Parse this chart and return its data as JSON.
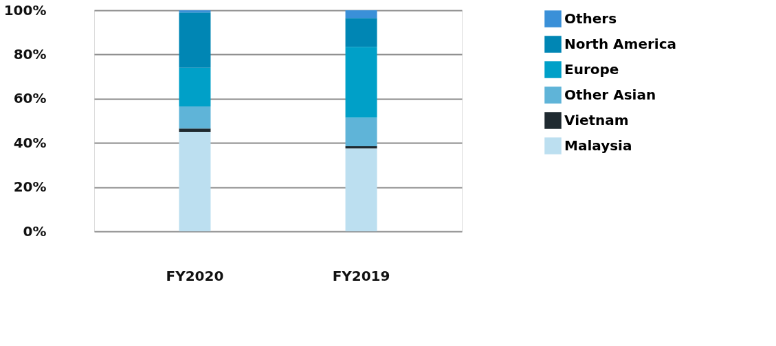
{
  "chart_data": {
    "type": "bar",
    "stacked": true,
    "categories": [
      "FY2020",
      "FY2019"
    ],
    "series": [
      {
        "name": "Malaysia",
        "color": "#bcdff0",
        "values": [
          45,
          37.5
        ]
      },
      {
        "name": "Vietnam",
        "color": "#1f2a30",
        "values": [
          1.5,
          1
        ]
      },
      {
        "name": "Other Asian",
        "color": "#5fb4d8",
        "values": [
          10,
          13
        ]
      },
      {
        "name": "Europe",
        "color": "#00a0c8",
        "values": [
          17.5,
          32
        ]
      },
      {
        "name": "North America",
        "color": "#0086b4",
        "values": [
          25,
          13
        ]
      },
      {
        "name": "Others",
        "color": "#3a90d8",
        "values": [
          1,
          3.5
        ]
      }
    ],
    "ylim": [
      0,
      100
    ],
    "yticks": [
      {
        "value": 0,
        "label": "0%"
      },
      {
        "value": 20,
        "label": "20%"
      },
      {
        "value": 40,
        "label": "40%"
      },
      {
        "value": 60,
        "label": "60%"
      },
      {
        "value": 80,
        "label": "80%"
      },
      {
        "value": 100,
        "label": "100%"
      }
    ],
    "grid": "y",
    "legend": "right"
  }
}
